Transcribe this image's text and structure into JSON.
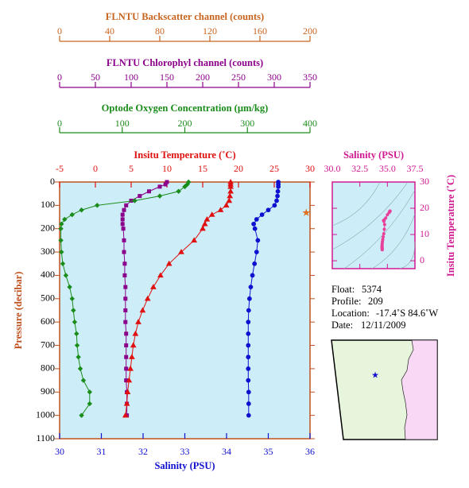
{
  "chart_data": [
    {
      "type": "profile",
      "y_label": "Pressure (decibar)",
      "y_color": "#c0501e",
      "y_inverted": true,
      "ylim": [
        0,
        1100
      ],
      "yticks": [
        0,
        100,
        200,
        300,
        400,
        500,
        600,
        700,
        800,
        900,
        1000,
        1100
      ],
      "background": "#cdeef8",
      "x_axes": [
        {
          "label": "FLNTU Backscatter channel (counts)",
          "color": "#c8641e",
          "xlim": [
            0,
            200
          ],
          "xticks": [
            0,
            40,
            80,
            120,
            160,
            200
          ]
        },
        {
          "label": "FLNTU Chlorophyl channel (counts)",
          "color": "#8b008b",
          "xlim": [
            0,
            350
          ],
          "xticks": [
            0,
            50,
            100,
            150,
            200,
            250,
            300,
            350
          ]
        },
        {
          "label": "Optode Oxygen Concentration (µm/kg)",
          "color": "#1a8c1a",
          "xlim": [
            0,
            400
          ],
          "xticks": [
            0,
            100,
            200,
            300,
            400
          ]
        },
        {
          "label": "Insitu Temperature (˚C)",
          "color": "#e01010",
          "xlim": [
            -5,
            30
          ],
          "xticks": [
            -5,
            0,
            5,
            10,
            15,
            20,
            25,
            30
          ]
        },
        {
          "label": "Salinity (PSU)",
          "color": "#1010d0",
          "xlim": [
            30,
            36
          ],
          "xticks": [
            30,
            31,
            32,
            33,
            34,
            35,
            36
          ]
        }
      ],
      "series": [
        {
          "axis": 0,
          "color": "#e07020",
          "marker": "star",
          "pressure": [
            135
          ],
          "values": [
            197
          ]
        },
        {
          "axis": 1,
          "color": "#8b008b",
          "marker": "square",
          "pressure": [
            0,
            10,
            20,
            40,
            60,
            80,
            100,
            120,
            140,
            160,
            180,
            200,
            250,
            300,
            350,
            400,
            450,
            500,
            550,
            600,
            650,
            700,
            750,
            800,
            850,
            900,
            950,
            1000
          ],
          "values": [
            150,
            148,
            140,
            125,
            112,
            100,
            93,
            90,
            88,
            88,
            88,
            89,
            90,
            90,
            91,
            91,
            92,
            92,
            92,
            92,
            93,
            93,
            93,
            93,
            93,
            94,
            94,
            94
          ]
        },
        {
          "axis": 2,
          "color": "#1a8c1a",
          "marker": "diamond",
          "pressure": [
            0,
            10,
            20,
            40,
            60,
            80,
            100,
            120,
            140,
            160,
            180,
            200,
            250,
            300,
            350,
            400,
            450,
            500,
            550,
            600,
            650,
            700,
            750,
            800,
            850,
            900,
            950,
            1000
          ],
          "values": [
            206,
            204,
            200,
            190,
            160,
            120,
            60,
            35,
            20,
            8,
            3,
            2,
            2,
            3,
            5,
            10,
            16,
            20,
            22,
            24,
            27,
            28,
            30,
            33,
            38,
            48,
            48,
            35
          ]
        },
        {
          "axis": 3,
          "color": "#e01010",
          "marker": "triangle",
          "pressure": [
            0,
            10,
            20,
            40,
            60,
            80,
            100,
            120,
            140,
            160,
            180,
            200,
            250,
            300,
            350,
            400,
            450,
            500,
            550,
            600,
            650,
            700,
            750,
            800,
            850,
            900,
            950,
            1000
          ],
          "values": [
            18.9,
            18.9,
            18.9,
            18.9,
            18.8,
            18.7,
            18.3,
            17.5,
            16.3,
            15.6,
            15.3,
            15.0,
            13.8,
            12.0,
            10.3,
            9.1,
            8.1,
            7.3,
            6.6,
            6.0,
            5.6,
            5.3,
            5.1,
            4.9,
            4.7,
            4.5,
            4.4,
            4.2
          ]
        },
        {
          "axis": 4,
          "color": "#1010d0",
          "marker": "circle",
          "pressure": [
            0,
            10,
            20,
            40,
            60,
            80,
            100,
            120,
            140,
            160,
            180,
            200,
            250,
            300,
            350,
            400,
            450,
            500,
            550,
            600,
            650,
            700,
            750,
            800,
            850,
            900,
            950,
            1000
          ],
          "values": [
            35.24,
            35.24,
            35.24,
            35.23,
            35.22,
            35.2,
            35.15,
            35.0,
            34.85,
            34.72,
            34.65,
            34.68,
            34.75,
            34.72,
            34.67,
            34.62,
            34.58,
            34.55,
            34.53,
            34.52,
            34.52,
            34.52,
            34.52,
            34.52,
            34.52,
            34.53,
            34.53,
            34.53
          ]
        }
      ]
    },
    {
      "type": "ts-scatter",
      "x_label": "Salinity (PSU)",
      "y_label": "Insitu Temperature (˚C)",
      "color": "#d01890",
      "point_color": "#e8409a",
      "xlim": [
        30,
        37.5
      ],
      "xticks": [
        {
          "value": 30,
          "label": "30.0"
        },
        {
          "value": 32.5,
          "label": "32.5"
        },
        {
          "value": 35,
          "label": "35.0"
        },
        {
          "value": 37.5,
          "label": "37.5"
        }
      ],
      "ylim": [
        -3,
        30
      ],
      "yticks": [
        0,
        10,
        20,
        30
      ]
    }
  ],
  "info": [
    {
      "label": "Float:",
      "value": "5374"
    },
    {
      "label": "Profile:",
      "value": "209"
    },
    {
      "label": "Location:",
      "value": "-17.4˚S  84.6˚W"
    },
    {
      "label": "Date:",
      "value": "12/11/2009"
    }
  ]
}
